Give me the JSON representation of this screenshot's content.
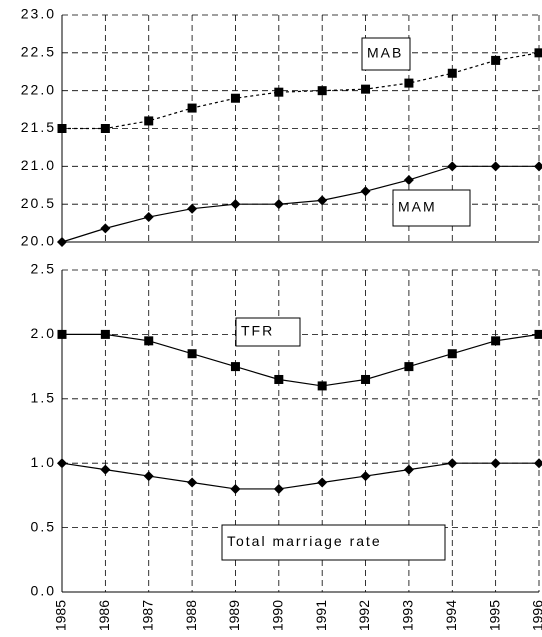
{
  "chart_data": [
    {
      "type": "line",
      "categories": [
        null,
        null,
        null,
        null,
        null,
        null,
        null,
        null,
        null,
        null,
        null,
        null
      ],
      "ylim": [
        20.0,
        23.0
      ],
      "yticks": [
        {
          "value": 20.0,
          "label": "20.0"
        },
        {
          "value": 20.5,
          "label": "20.5"
        },
        {
          "value": 21.0,
          "label": "21.0"
        },
        {
          "value": 21.5,
          "label": "21.5"
        },
        {
          "value": 22.0,
          "label": "22.0"
        },
        {
          "value": 22.5,
          "label": "22.5"
        },
        {
          "value": 23.0,
          "label": "23.0"
        }
      ],
      "grid": true,
      "series": [
        {
          "name": "MAB",
          "color": "#000000",
          "line_style": "dashed",
          "marker": "square",
          "values": [
            21.5,
            21.5,
            21.6,
            21.77,
            21.9,
            21.98,
            22.0,
            22.02,
            22.1,
            22.23,
            22.4,
            22.5
          ]
        },
        {
          "name": "MAM",
          "color": "#000000",
          "line_style": "solid",
          "marker": "diamond",
          "values": [
            20.0,
            20.18,
            20.33,
            20.44,
            20.5,
            20.5,
            20.55,
            20.67,
            20.82,
            21.0,
            21.0,
            21.0
          ]
        }
      ]
    },
    {
      "type": "line",
      "categories": [
        "1985",
        "1986",
        "1987",
        "1988",
        "1989",
        "1990",
        "1991",
        "1992",
        "1993",
        "1994",
        "1995",
        "1996"
      ],
      "ylim": [
        0.0,
        2.5
      ],
      "yticks": [
        {
          "value": 0.0,
          "label": "0.0"
        },
        0.5,
        {
          "value": 1.0,
          "label": "1.0"
        },
        1.5,
        {
          "value": 2.0,
          "label": "2.0"
        },
        2.5
      ],
      "grid": true,
      "series": [
        {
          "name": "TFR",
          "color": "#000000",
          "line_style": "solid",
          "marker": "square",
          "values": [
            2.0,
            2.0,
            1.95,
            1.85,
            1.75,
            1.65,
            1.6,
            1.65,
            1.75,
            1.85,
            1.95,
            2.0
          ]
        },
        {
          "name": "Total marriage rate",
          "color": "#000000",
          "line_style": "solid",
          "marker": "diamond",
          "values": [
            1.0,
            0.95,
            0.9,
            0.85,
            0.8,
            0.8,
            0.85,
            0.9,
            0.95,
            1.0,
            1.0,
            1.0
          ]
        }
      ]
    }
  ]
}
